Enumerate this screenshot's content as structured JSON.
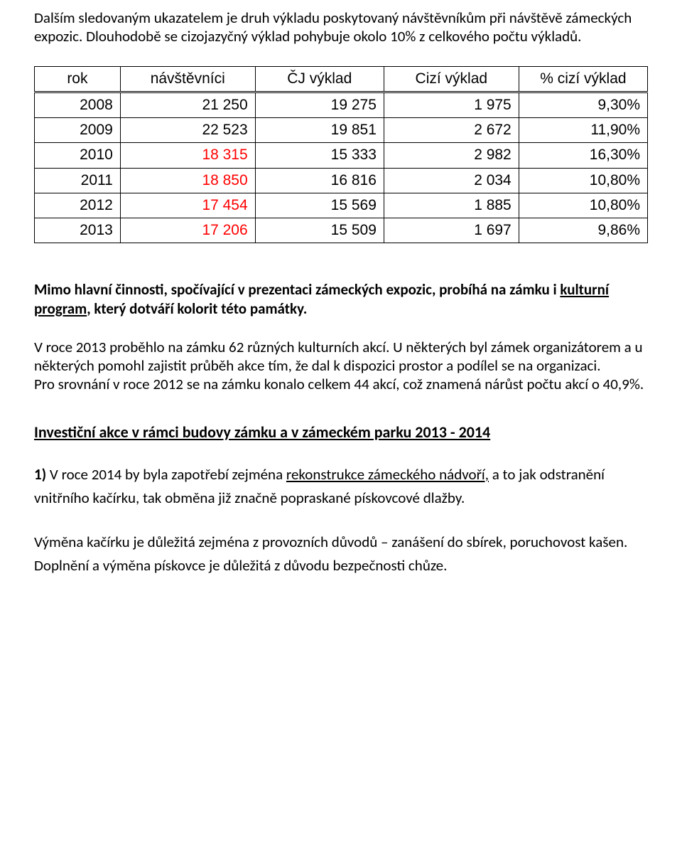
{
  "intro": {
    "p1": "Dalším sledovaným ukazatelem je druh výkladu poskytovaný návštěvníkům při návštěvě zámeckých expozic. Dlouhodobě se cizojazyčný výklad pohybuje okolo 10% z celkového počtu výkladů."
  },
  "table": {
    "headers": [
      "rok",
      "návštěvníci",
      "ČJ výklad",
      "Cizí výklad",
      "% cizí výklad"
    ],
    "rows": [
      {
        "year": "2008",
        "visitors": "21 250",
        "cj": "19 275",
        "cizi": "1 975",
        "pct": "9,30%",
        "red": false
      },
      {
        "year": "2009",
        "visitors": "22 523",
        "cj": "19 851",
        "cizi": "2 672",
        "pct": "11,90%",
        "red": false
      },
      {
        "year": "2010",
        "visitors": "18 315",
        "cj": "15 333",
        "cizi": "2 982",
        "pct": "16,30%",
        "red": true
      },
      {
        "year": "2011",
        "visitors": "18 850",
        "cj": "16 816",
        "cizi": "2 034",
        "pct": "10,80%",
        "red": true
      },
      {
        "year": "2012",
        "visitors": "17 454",
        "cj": "15 569",
        "cizi": "1 885",
        "pct": "10,80%",
        "red": true
      },
      {
        "year": "2013",
        "visitors": "17 206",
        "cj": "15 509",
        "cizi": "1 697",
        "pct": "9,86%",
        "red": true
      }
    ]
  },
  "body": {
    "p2a": "Mimo hlavní činnosti, spočívající v prezentaci zámeckých expozic, probíhá na zámku i ",
    "p2b": "kulturní program",
    "p2c": ", který dotváří kolorit této památky.",
    "p3": "V roce  2013 proběhlo na zámku 62 různých kulturních akcí. U některých byl zámek  organizátorem a u některých pomohl zajistit průběh akce tím, že dal k dispozici prostor a podílel se na organizaci.",
    "p4": "Pro srovnání v roce 2012 se na zámku konalo celkem 44 akcí, což znamená nárůst počtu akcí o 40,9%.",
    "heading": "Investiční akce v rámci budovy zámku a  v zámeckém parku 2013 - 2014",
    "li1_lead": "1)",
    "li1_a": " V roce 2014 by byla zapotřebí zejména ",
    "li1_b": "rekonstrukce zámeckého nádvoří,",
    "li1_c": " a to jak odstranění vnitřního kačírku, tak obměna již značně popraskané pískovcové dlažby.",
    "p5": "Výměna kačírku je důležitá zejména z provozních důvodů – zanášení do sbírek, poruchovost kašen. Doplnění a výměna pískovce je důležitá z důvodu bezpečnosti chůze."
  }
}
